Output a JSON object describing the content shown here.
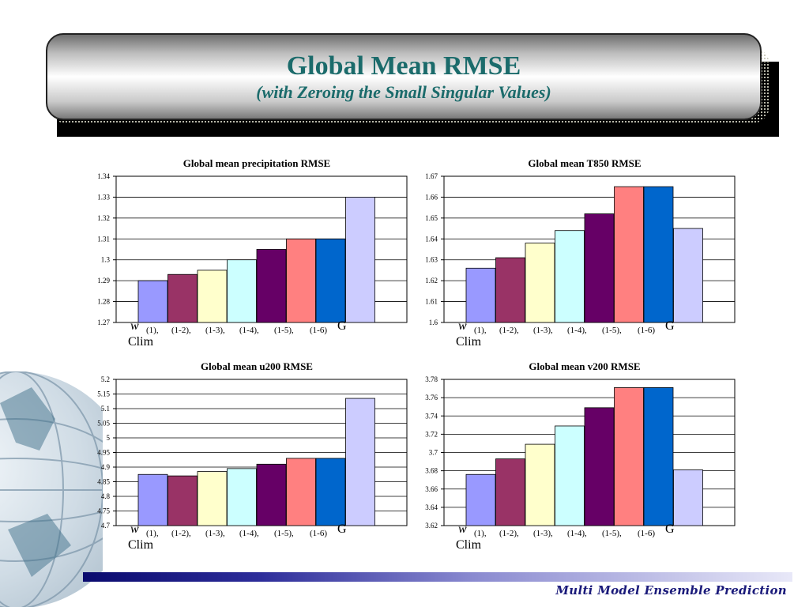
{
  "slide": {
    "title": "Global Mean RMSE",
    "subtitle": "(with Zeroing the Small Singular Values)",
    "footer": "Multi Model Ensemble Prediction"
  },
  "colors": [
    "#9999ff",
    "#993366",
    "#ffffcc",
    "#ccffff",
    "#660066",
    "#ff8080",
    "#0066cc",
    "#ccccff"
  ],
  "xaxis": {
    "w": "w",
    "labels": [
      "(1),",
      "(1-2),",
      "(1-3),",
      "(1-4),",
      "(1-5),",
      "(1-6)"
    ],
    "g": "G",
    "clim": "Clim"
  },
  "chart_data": [
    {
      "type": "bar",
      "title": "Global mean precipitation RMSE",
      "ylim": [
        1.27,
        1.34
      ],
      "yticks": [
        "1.27",
        "1.28",
        "1.29",
        "1.3",
        "1.31",
        "1.32",
        "1.33",
        "1.34"
      ],
      "values": [
        1.29,
        1.293,
        1.295,
        1.3,
        1.305,
        1.31,
        1.31,
        1.33
      ],
      "grid": true
    },
    {
      "type": "bar",
      "title": "Global mean T850 RMSE",
      "ylim": [
        1.6,
        1.67
      ],
      "yticks": [
        "1.6",
        "1.61",
        "1.62",
        "1.63",
        "1.64",
        "1.65",
        "1.66",
        "1.67"
      ],
      "values": [
        1.626,
        1.631,
        1.638,
        1.644,
        1.652,
        1.665,
        1.665,
        1.645
      ],
      "grid": true
    },
    {
      "type": "bar",
      "title": "Global mean u200 RMSE",
      "ylim": [
        4.7,
        5.2
      ],
      "yticks": [
        "4.7",
        "4.75",
        "4.8",
        "4.85",
        "4.9",
        "4.95",
        "5",
        "5.05",
        "5.1",
        "5.15",
        "5.2"
      ],
      "values": [
        4.875,
        4.87,
        4.885,
        4.895,
        4.91,
        4.93,
        4.93,
        5.135
      ],
      "grid": true
    },
    {
      "type": "bar",
      "title": "Global mean v200 RMSE",
      "ylim": [
        3.62,
        3.78
      ],
      "yticks": [
        "3.62",
        "3.64",
        "3.66",
        "3.68",
        "3.7",
        "3.72",
        "3.74",
        "3.76",
        "3.78"
      ],
      "values": [
        3.676,
        3.693,
        3.709,
        3.729,
        3.749,
        3.771,
        3.771,
        3.681
      ],
      "grid": true
    }
  ]
}
